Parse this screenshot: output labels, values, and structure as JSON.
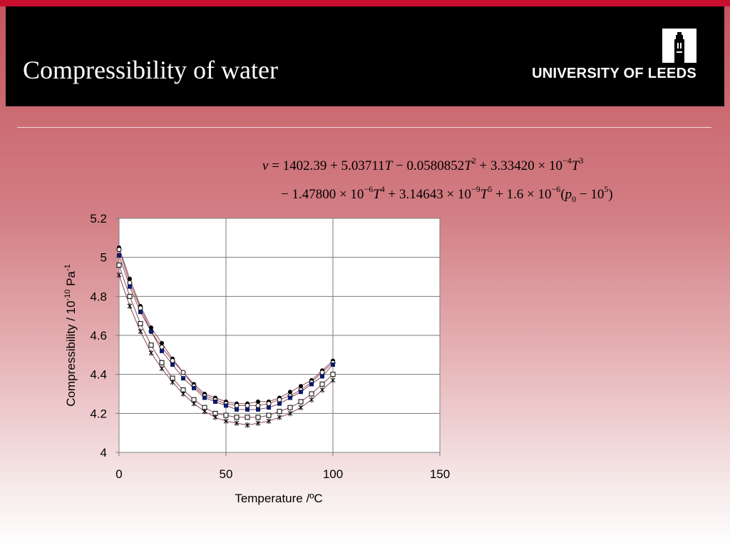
{
  "slide": {
    "title": "Compressibility of water",
    "logo_text": "UNIVERSITY OF LEEDS"
  },
  "equation": {
    "line1": {
      "lhs": "v",
      "eq": " = 1402.39 + 5.03711",
      "t1": "T",
      "b": " − 0.0580852",
      "t2": "T",
      "s2": "2",
      "c": " + 3.33420 × 10",
      "s3": "−4",
      "t3": "T",
      "s4": "3"
    },
    "line2": {
      "a": "− 1.47800 × 10",
      "s1": "−6",
      "t1": "T",
      "s2": "4",
      "b": " + 3.14643 × 10",
      "s3": "−9",
      "t2": "T",
      "s4": "5",
      "c": " + 1.6 × 10",
      "s5": "−6",
      "d": "(",
      "p": "p",
      "sub": "0",
      "e": " − 10",
      "s6": "5",
      "f": ")"
    }
  },
  "chart_data": {
    "type": "scatter",
    "xlabel": "Temperature /ºC",
    "ylabel_base": "Compressibility / 10",
    "ylabel_exp": "-10",
    "ylabel_unit": " Pa",
    "ylabel_unit_exp": "-1",
    "xlim": [
      0,
      150
    ],
    "ylim": [
      4,
      5.2
    ],
    "xticks": [
      "0",
      "50",
      "100",
      "150"
    ],
    "yticks": [
      "4",
      "4.2",
      "4.4",
      "4.6",
      "4.8",
      "5",
      "5.2"
    ],
    "grid": true,
    "series": [
      {
        "marker": "filled-circle",
        "x": [
          0,
          5,
          10,
          15,
          20,
          25,
          30,
          35,
          40,
          45,
          50,
          55,
          60,
          65,
          70,
          75,
          80,
          85,
          90,
          95,
          100
        ],
        "y": [
          5.05,
          4.89,
          4.75,
          4.64,
          4.56,
          4.48,
          4.41,
          4.35,
          4.3,
          4.28,
          4.26,
          4.25,
          4.25,
          4.26,
          4.26,
          4.28,
          4.31,
          4.34,
          4.37,
          4.42,
          4.47
        ]
      },
      {
        "marker": "open-circle",
        "x": [
          0,
          5,
          10,
          15,
          20,
          25,
          30,
          35,
          40,
          45,
          50,
          55,
          60,
          65,
          70,
          75,
          80,
          85,
          90,
          95,
          100
        ],
        "y": [
          5.04,
          4.87,
          4.74,
          4.62,
          4.54,
          4.47,
          4.41,
          4.34,
          4.29,
          4.27,
          4.25,
          4.24,
          4.24,
          4.24,
          4.25,
          4.27,
          4.29,
          4.32,
          4.36,
          4.41,
          4.46
        ]
      },
      {
        "marker": "filled-square",
        "x": [
          0,
          5,
          10,
          15,
          20,
          25,
          30,
          35,
          40,
          45,
          50,
          55,
          60,
          65,
          70,
          75,
          80,
          85,
          90,
          95,
          100
        ],
        "y": [
          5.01,
          4.85,
          4.72,
          4.62,
          4.52,
          4.45,
          4.38,
          4.33,
          4.28,
          4.26,
          4.24,
          4.22,
          4.22,
          4.22,
          4.23,
          4.25,
          4.28,
          4.31,
          4.35,
          4.39,
          4.45
        ]
      },
      {
        "marker": "open-square",
        "x": [
          0,
          5,
          10,
          15,
          20,
          25,
          30,
          35,
          40,
          45,
          50,
          55,
          60,
          65,
          70,
          75,
          80,
          85,
          90,
          95,
          100
        ],
        "y": [
          4.96,
          4.8,
          4.66,
          4.55,
          4.46,
          4.38,
          4.32,
          4.27,
          4.23,
          4.2,
          4.19,
          4.18,
          4.18,
          4.18,
          4.19,
          4.21,
          4.23,
          4.26,
          4.3,
          4.35,
          4.4
        ]
      },
      {
        "marker": "asterisk",
        "x": [
          0,
          5,
          10,
          15,
          20,
          25,
          30,
          35,
          40,
          45,
          50,
          55,
          60,
          65,
          70,
          75,
          80,
          85,
          90,
          95,
          100
        ],
        "y": [
          4.91,
          4.75,
          4.62,
          4.51,
          4.43,
          4.36,
          4.3,
          4.25,
          4.21,
          4.18,
          4.16,
          4.15,
          4.14,
          4.15,
          4.16,
          4.18,
          4.2,
          4.23,
          4.27,
          4.32,
          4.37
        ]
      }
    ],
    "colors": {
      "line": "#8a4a56",
      "marker": "#000000",
      "filled_square": "#0a1a6b",
      "grid": "#7a7a7a",
      "plot_bg": "#ffffff"
    }
  }
}
